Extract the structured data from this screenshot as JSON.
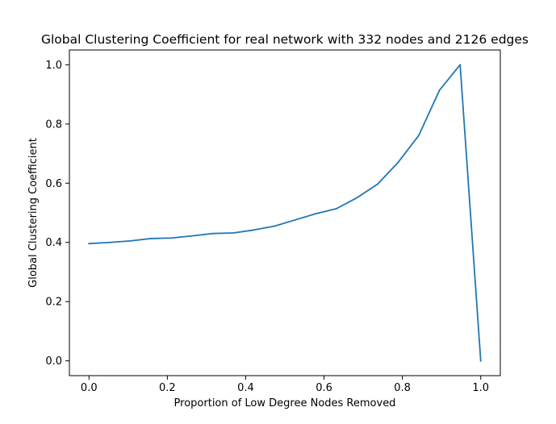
{
  "chart_data": {
    "type": "line",
    "title": "Global Clustering Coefficient for real network with 332 nodes and 2126 edges",
    "xlabel": "Proportion of Low Degree Nodes Removed",
    "ylabel": "Global Clustering Coefficient",
    "xlim": [
      -0.05,
      1.05
    ],
    "ylim": [
      -0.05,
      1.05
    ],
    "xticks": [
      0.0,
      0.2,
      0.4,
      0.6,
      0.8,
      1.0
    ],
    "xtick_labels": [
      "0.0",
      "0.2",
      "0.4",
      "0.6",
      "0.8",
      "1.0"
    ],
    "yticks": [
      0.0,
      0.2,
      0.4,
      0.6,
      0.8,
      1.0
    ],
    "ytick_labels": [
      "0.0",
      "0.2",
      "0.4",
      "0.6",
      "0.8",
      "1.0"
    ],
    "grid": false,
    "legend": "none",
    "line_color": "#1f77b4",
    "series": [
      {
        "x": [
          0.0,
          0.0526,
          0.1053,
          0.1579,
          0.2105,
          0.2632,
          0.3158,
          0.3684,
          0.4211,
          0.4737,
          0.5263,
          0.5789,
          0.6316,
          0.6842,
          0.7368,
          0.7895,
          0.8421,
          0.8947,
          0.9474,
          1.0
        ],
        "values": [
          0.396,
          0.4,
          0.405,
          0.413,
          0.415,
          0.422,
          0.43,
          0.432,
          0.442,
          0.455,
          0.476,
          0.497,
          0.514,
          0.551,
          0.597,
          0.671,
          0.762,
          0.914,
          1.0,
          0.0
        ]
      }
    ]
  }
}
